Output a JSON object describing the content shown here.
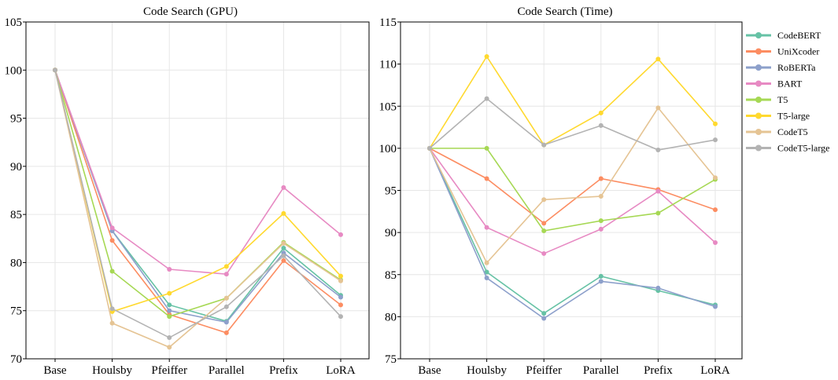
{
  "chart_data": [
    {
      "type": "line",
      "title": "Code Search (GPU)",
      "xlabel": "",
      "ylabel": "",
      "categories": [
        "Base",
        "Houlsby",
        "Pfeiffer",
        "Parallel",
        "Prefix",
        "LoRA"
      ],
      "ylim": [
        70,
        105
      ],
      "yticks": [
        70,
        75,
        80,
        85,
        90,
        95,
        100,
        105
      ],
      "grid": true,
      "legend": "none",
      "series": [
        {
          "name": "CodeBERT",
          "color": "#66c2a5",
          "values": [
            100,
            83.3,
            75.6,
            73.9,
            81.5,
            76.6
          ]
        },
        {
          "name": "UniXcoder",
          "color": "#fc8d62",
          "values": [
            100,
            82.3,
            74.6,
            72.7,
            80.2,
            75.6
          ]
        },
        {
          "name": "RoBERTa",
          "color": "#8da0cb",
          "values": [
            100,
            83.3,
            75.0,
            73.8,
            81.0,
            76.4
          ]
        },
        {
          "name": "BART",
          "color": "#e78ac3",
          "values": [
            100,
            83.6,
            79.3,
            78.8,
            87.8,
            82.9
          ]
        },
        {
          "name": "T5",
          "color": "#a6d854",
          "values": [
            100,
            79.1,
            74.4,
            76.3,
            82.1,
            78.2
          ]
        },
        {
          "name": "T5-large",
          "color": "#ffd92f",
          "values": [
            100,
            74.9,
            76.8,
            79.6,
            85.1,
            78.6
          ]
        },
        {
          "name": "CodeT5",
          "color": "#e5c494",
          "values": [
            100,
            73.7,
            71.2,
            76.3,
            82.0,
            78.1
          ]
        },
        {
          "name": "CodeT5-large",
          "color": "#b3b3b3",
          "values": [
            100,
            75.2,
            72.2,
            75.4,
            80.7,
            74.4
          ]
        }
      ]
    },
    {
      "type": "line",
      "title": "Code Search (Time)",
      "xlabel": "",
      "ylabel": "",
      "categories": [
        "Base",
        "Houlsby",
        "Pfeiffer",
        "Parallel",
        "Prefix",
        "LoRA"
      ],
      "ylim": [
        75,
        115
      ],
      "yticks": [
        75,
        80,
        85,
        90,
        95,
        100,
        105,
        110,
        115
      ],
      "grid": true,
      "legend": "right",
      "series": [
        {
          "name": "CodeBERT",
          "color": "#66c2a5",
          "values": [
            100,
            85.3,
            80.4,
            84.8,
            83.1,
            81.4
          ]
        },
        {
          "name": "UniXcoder",
          "color": "#fc8d62",
          "values": [
            100,
            96.4,
            91.1,
            96.4,
            95.1,
            92.7
          ]
        },
        {
          "name": "RoBERTa",
          "color": "#8da0cb",
          "values": [
            100,
            84.6,
            79.8,
            84.2,
            83.4,
            81.2
          ]
        },
        {
          "name": "BART",
          "color": "#e78ac3",
          "values": [
            100,
            90.6,
            87.5,
            90.4,
            94.9,
            88.8
          ]
        },
        {
          "name": "T5",
          "color": "#a6d854",
          "values": [
            100,
            100.0,
            90.2,
            91.4,
            92.3,
            96.3
          ]
        },
        {
          "name": "T5-large",
          "color": "#ffd92f",
          "values": [
            100,
            110.9,
            100.4,
            104.2,
            110.6,
            102.9
          ]
        },
        {
          "name": "CodeT5",
          "color": "#e5c494",
          "values": [
            100,
            86.4,
            93.9,
            94.3,
            104.8,
            96.5
          ]
        },
        {
          "name": "CodeT5-large",
          "color": "#b3b3b3",
          "values": [
            100,
            105.9,
            100.4,
            102.7,
            99.8,
            101.0
          ]
        }
      ]
    }
  ]
}
